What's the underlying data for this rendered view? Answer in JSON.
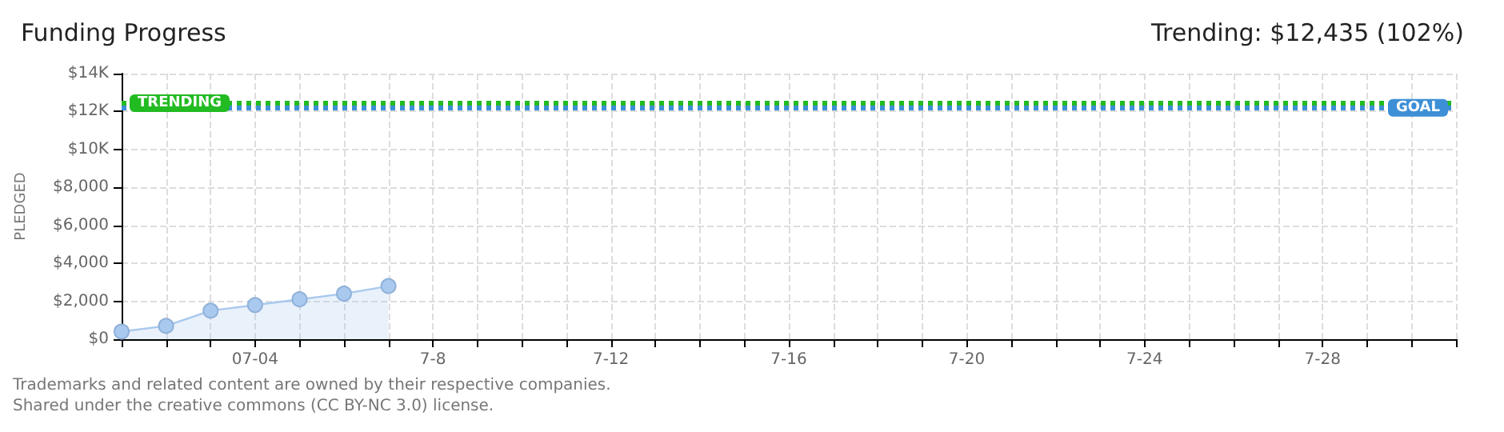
{
  "chart_data": {
    "type": "area",
    "title": "Funding Progress",
    "subtitle": "Trending: $12,435 (102%)",
    "ylabel": "PLEDGED",
    "annotations": [
      "Trademarks and related content are owned by their respective companies.",
      "Shared under the creative commons (CC BY-NC 3.0) license."
    ],
    "x": [
      "--07-01",
      "--07-02",
      "--07-03",
      "--07-04",
      "--07-05",
      "--07-06",
      "--07-07"
    ],
    "series": [
      {
        "color": "#a9c9ee",
        "values": [
          400,
          700,
          1500,
          1800,
          2100,
          2400,
          2800
        ]
      }
    ],
    "xlim": [
      "--07-01",
      "--07-31"
    ],
    "xticks": [
      {
        "value": "--07-01",
        "label": null
      },
      {
        "value": "--07-02",
        "label": null
      },
      {
        "value": "--07-03",
        "label": null
      },
      {
        "value": "--07-04",
        "label": "07-04"
      },
      {
        "value": "--07-05",
        "label": null
      },
      {
        "value": "--07-06",
        "label": null
      },
      {
        "value": "--07-07",
        "label": null
      },
      {
        "value": "--07-08",
        "label": "7-8"
      },
      {
        "value": "--07-09",
        "label": null
      },
      {
        "value": "--07-10",
        "label": null
      },
      {
        "value": "--07-11",
        "label": null
      },
      {
        "value": "--07-12",
        "label": "7-12"
      },
      {
        "value": "--07-13",
        "label": null
      },
      {
        "value": "--07-14",
        "label": null
      },
      {
        "value": "--07-15",
        "label": null
      },
      {
        "value": "--07-16",
        "label": "7-16"
      },
      {
        "value": "--07-17",
        "label": null
      },
      {
        "value": "--07-18",
        "label": null
      },
      {
        "value": "--07-19",
        "label": null
      },
      {
        "value": "--07-20",
        "label": "7-20"
      },
      {
        "value": "--07-21",
        "label": null
      },
      {
        "value": "--07-22",
        "label": null
      },
      {
        "value": "--07-23",
        "label": null
      },
      {
        "value": "--07-24",
        "label": "7-24"
      },
      {
        "value": "--07-25",
        "label": null
      },
      {
        "value": "--07-26",
        "label": null
      },
      {
        "value": "--07-27",
        "label": null
      },
      {
        "value": "--07-28",
        "label": "7-28"
      },
      {
        "value": "--07-29",
        "label": null
      },
      {
        "value": "--07-30",
        "label": null
      },
      {
        "value": "--07-31",
        "label": null
      }
    ],
    "ylim": [
      0,
      14000
    ],
    "yticks": [
      {
        "value": 0,
        "label": "$0"
      },
      {
        "value": 2000,
        "label": "$2,000"
      },
      {
        "value": 4000,
        "label": "$4,000"
      },
      {
        "value": 6000,
        "label": "$6,000"
      },
      {
        "value": 8000,
        "label": "$8,000"
      },
      {
        "value": 10000,
        "label": "$10K"
      },
      {
        "value": 12000,
        "label": "$12K"
      },
      {
        "value": 14000,
        "label": "$14K"
      }
    ],
    "ref_lines": [
      {
        "axis": "y",
        "value": 12435,
        "label": "TRENDING",
        "color": "#22bb22",
        "line_style": "dotted"
      },
      {
        "axis": "y",
        "value": 12200,
        "label": "GOAL",
        "color": "#3d8fd6",
        "line_style": "dotted"
      }
    ],
    "grid": true,
    "marker": "circle",
    "line_style": "solid"
  }
}
